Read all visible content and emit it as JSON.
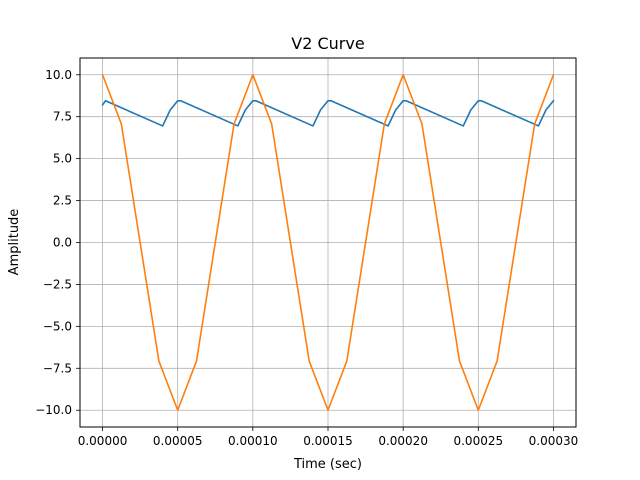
{
  "chart_data": {
    "type": "line",
    "title": "V2 Curve",
    "xlabel": "Time (sec)",
    "ylabel": "Amplitude",
    "xlim": [
      -1.5e-05,
      0.000315
    ],
    "ylim": [
      -11.0,
      11.0
    ],
    "grid": true,
    "legend": "none",
    "x_ticks": [
      0,
      5e-05,
      0.0001,
      0.00015,
      0.0002,
      0.00025,
      0.0003
    ],
    "x_tick_labels": [
      "0.00000",
      "0.00005",
      "0.00010",
      "0.00015",
      "0.00020",
      "0.00025",
      "0.00030"
    ],
    "y_ticks": [
      -10,
      -7.5,
      -5,
      -2.5,
      0,
      2.5,
      5,
      7.5,
      10
    ],
    "y_tick_labels": [
      "−10.0",
      "−7.5",
      "−5.0",
      "−2.5",
      "0.0",
      "2.5",
      "5.0",
      "7.5",
      "10.0"
    ],
    "series": [
      {
        "color": "#1f77b4",
        "x": [
          0,
          2e-06,
          4e-05,
          4.5e-05,
          5e-05,
          5.2e-05,
          9e-05,
          9.5e-05,
          0.0001,
          0.000102,
          0.00014,
          0.000145,
          0.00015,
          0.000152,
          0.00019,
          0.000195,
          0.0002,
          0.000202,
          0.00024,
          0.000245,
          0.00025,
          0.000252,
          0.00029,
          0.000295,
          0.0003
        ],
        "values": [
          8.2,
          8.45,
          6.95,
          7.9,
          8.45,
          8.45,
          6.95,
          7.9,
          8.45,
          8.45,
          6.95,
          7.9,
          8.45,
          8.45,
          6.95,
          7.9,
          8.45,
          8.45,
          6.95,
          7.9,
          8.45,
          8.45,
          6.95,
          7.9,
          8.45
        ]
      },
      {
        "color": "#ff7f0e",
        "x": [
          0,
          1.25e-05,
          2.5e-05,
          3.75e-05,
          5e-05,
          6.25e-05,
          7.5e-05,
          8.75e-05,
          0.0001,
          0.0001125,
          0.000125,
          0.0001375,
          0.00015,
          0.0001625,
          0.000175,
          0.0001875,
          0.0002,
          0.0002125,
          0.000225,
          0.0002375,
          0.00025,
          0.0002625,
          0.000275,
          0.0002875,
          0.0003
        ],
        "values": [
          10,
          7.07,
          0,
          -7.07,
          -10,
          -7.07,
          0,
          7.07,
          10,
          7.07,
          0,
          -7.07,
          -10,
          -7.07,
          0,
          7.07,
          10,
          7.07,
          0,
          -7.07,
          -10,
          -7.07,
          0,
          7.07,
          10
        ]
      }
    ]
  }
}
